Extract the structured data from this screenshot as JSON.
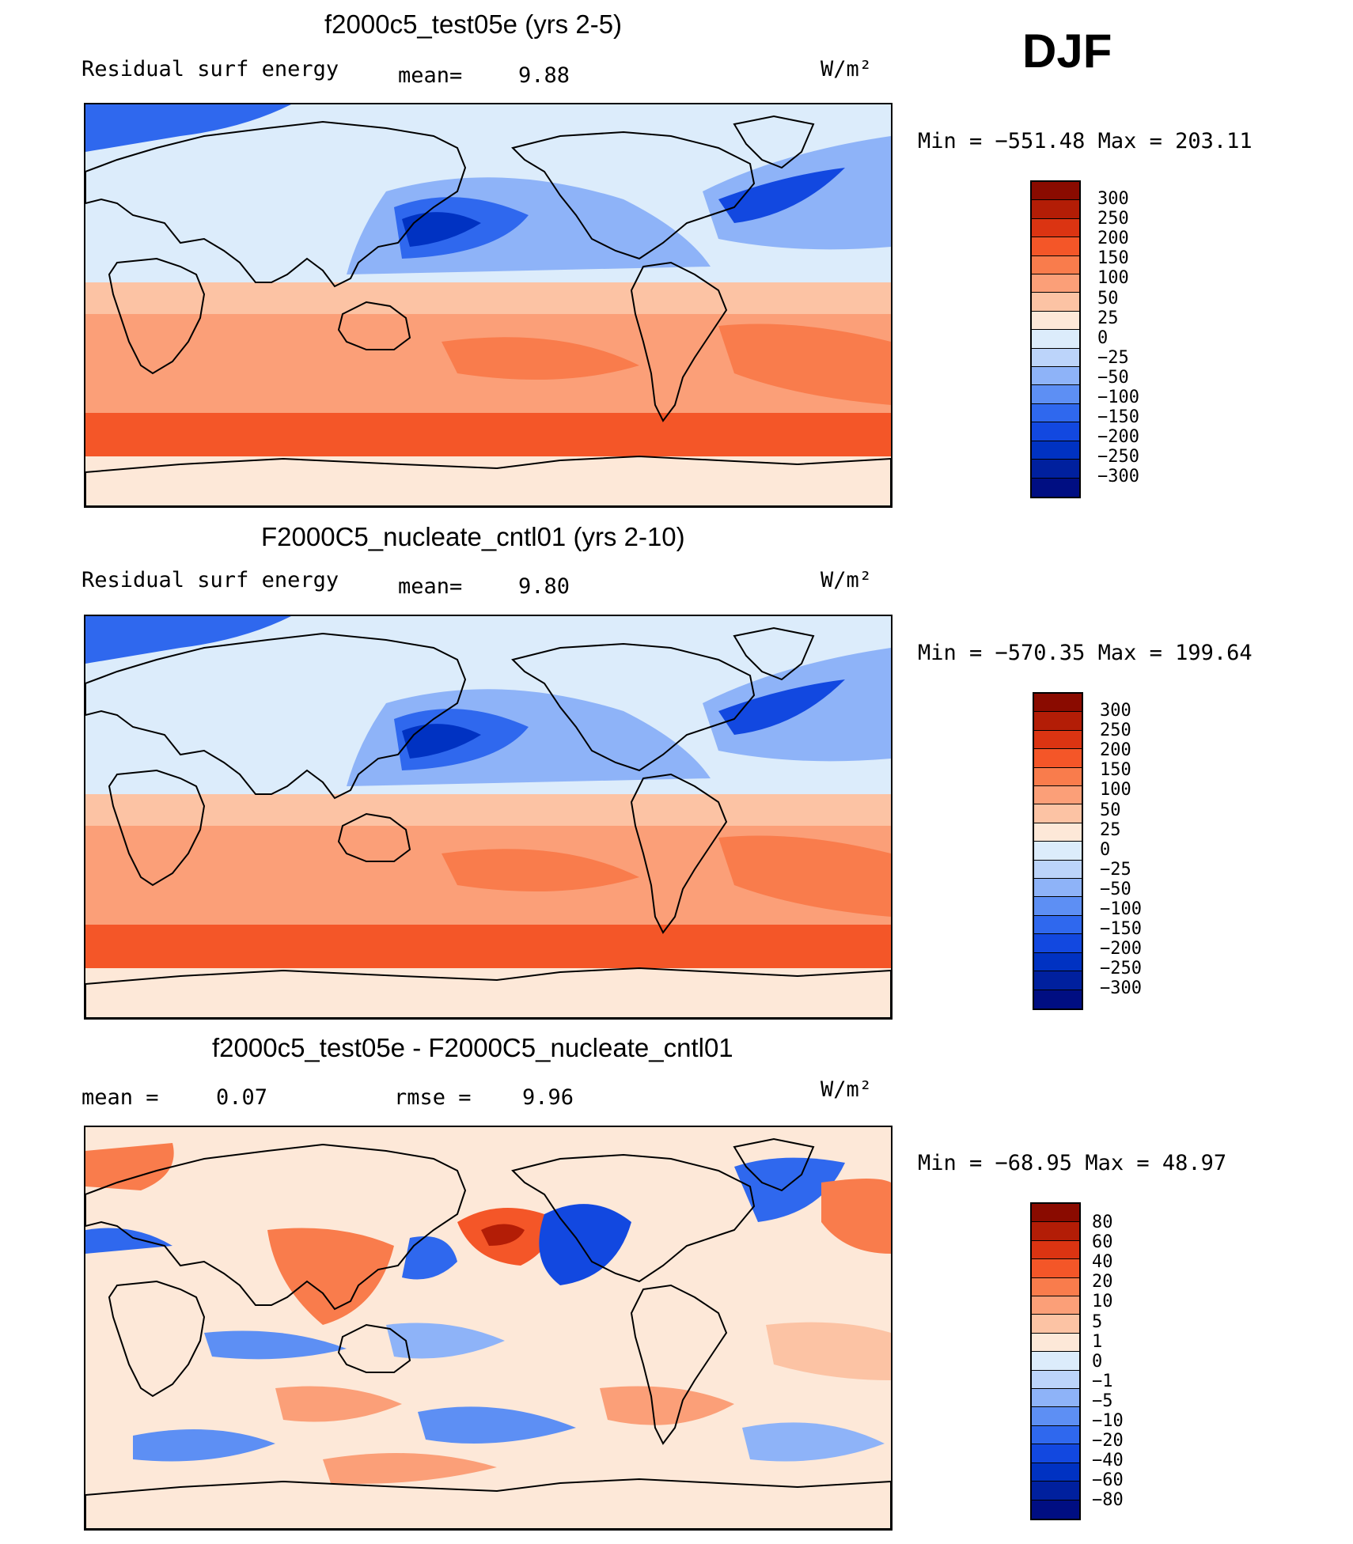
{
  "season": "DJF",
  "units": "W/m²",
  "palette": {
    "full": [
      "#000e82",
      "#00209e",
      "#0032c2",
      "#1248e0",
      "#2f68ee",
      "#5d8ff4",
      "#8eb3f8",
      "#bcd4fa",
      "#dcecfb",
      "#fde8d8",
      "#fcc3a4",
      "#fb9f78",
      "#f97c4c",
      "#f45628",
      "#db3412",
      "#b31d06",
      "#8a0b00"
    ],
    "diff": [
      "#000e82",
      "#00209e",
      "#0032c2",
      "#1248e0",
      "#2f68ee",
      "#5d8ff4",
      "#8eb3f8",
      "#bcd4fa",
      "#dcecfb",
      "#fde8d8",
      "#fcc3a4",
      "#fb9f78",
      "#f97c4c",
      "#f45628",
      "#db3412",
      "#b31d06",
      "#8a0b00"
    ]
  },
  "panels": [
    {
      "title": "f2000c5_test05e (yrs 2-5)",
      "left_label": "Residual surf energy",
      "mean_label": "mean=",
      "mean_value": "9.88",
      "units": "W/m²",
      "minmax": "Min = −551.48 Max = 203.11",
      "levels": [
        "300",
        "250",
        "200",
        "150",
        "100",
        "50",
        "25",
        "0",
        "−25",
        "−50",
        "−100",
        "−150",
        "−200",
        "−250",
        "−300"
      ]
    },
    {
      "title": "F2000C5_nucleate_cntl01 (yrs 2-10)",
      "left_label": "Residual surf energy",
      "mean_label": "mean=",
      "mean_value": "9.80",
      "units": "W/m²",
      "minmax": "Min = −570.35 Max = 199.64",
      "levels": [
        "300",
        "250",
        "200",
        "150",
        "100",
        "50",
        "25",
        "0",
        "−25",
        "−50",
        "−100",
        "−150",
        "−200",
        "−250",
        "−300"
      ]
    },
    {
      "title": "f2000c5_test05e - F2000C5_nucleate_cntl01",
      "left_label": "mean =",
      "mean_value": "0.07",
      "rmse_label": "rmse =",
      "rmse_value": "9.96",
      "units": "W/m²",
      "minmax": "Min = −68.95 Max =  48.97",
      "levels": [
        "80",
        "60",
        "40",
        "20",
        "10",
        "5",
        "1",
        "0",
        "−1",
        "−5",
        "−10",
        "−20",
        "−40",
        "−60",
        "−80"
      ]
    }
  ]
}
